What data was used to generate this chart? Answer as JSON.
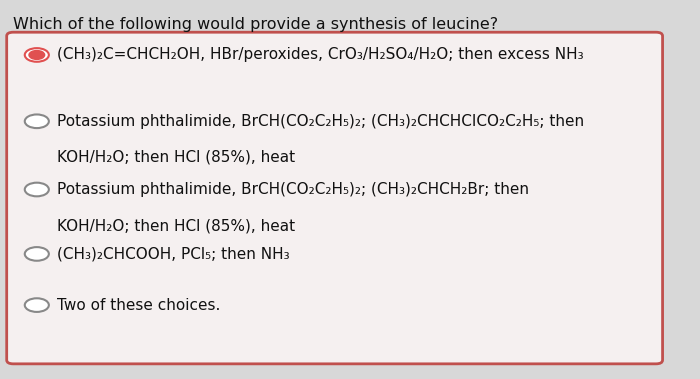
{
  "title": "Which of the following would provide a synthesis of leucine?",
  "background_color": "#d8d8d8",
  "box_color": "#f5f0f0",
  "box_border_color": "#c0504d",
  "title_fontsize": 11.5,
  "option_fontsize": 11.0,
  "options": [
    {
      "text_lines": [
        "(CH₃)₂C=CHCH₂OH, HBr/peroxides, CrO₃/H₂SO₄/H₂O; then excess NH₃"
      ],
      "selected": true,
      "radio_color": "#e05050"
    },
    {
      "text_lines": [
        "Potassium phthalimide, BrCH(CO₂C₂H₅)₂; (CH₃)₂CHCHCICO₂C₂H₅; then",
        "KOH/H₂O; then HCl (85%), heat"
      ],
      "selected": false,
      "radio_color": "#888888"
    },
    {
      "text_lines": [
        "Potassium phthalimide, BrCH(CO₂C₂H₅)₂; (CH₃)₂CHCH₂Br; then",
        "KOH/H₂O; then HCl (85%), heat"
      ],
      "selected": false,
      "radio_color": "#888888"
    },
    {
      "text_lines": [
        "(CH₃)₂CHCOOH, PCl₅; then NH₃"
      ],
      "selected": false,
      "radio_color": "#888888"
    },
    {
      "text_lines": [
        "Two of these choices."
      ],
      "selected": false,
      "radio_color": "#888888"
    }
  ]
}
